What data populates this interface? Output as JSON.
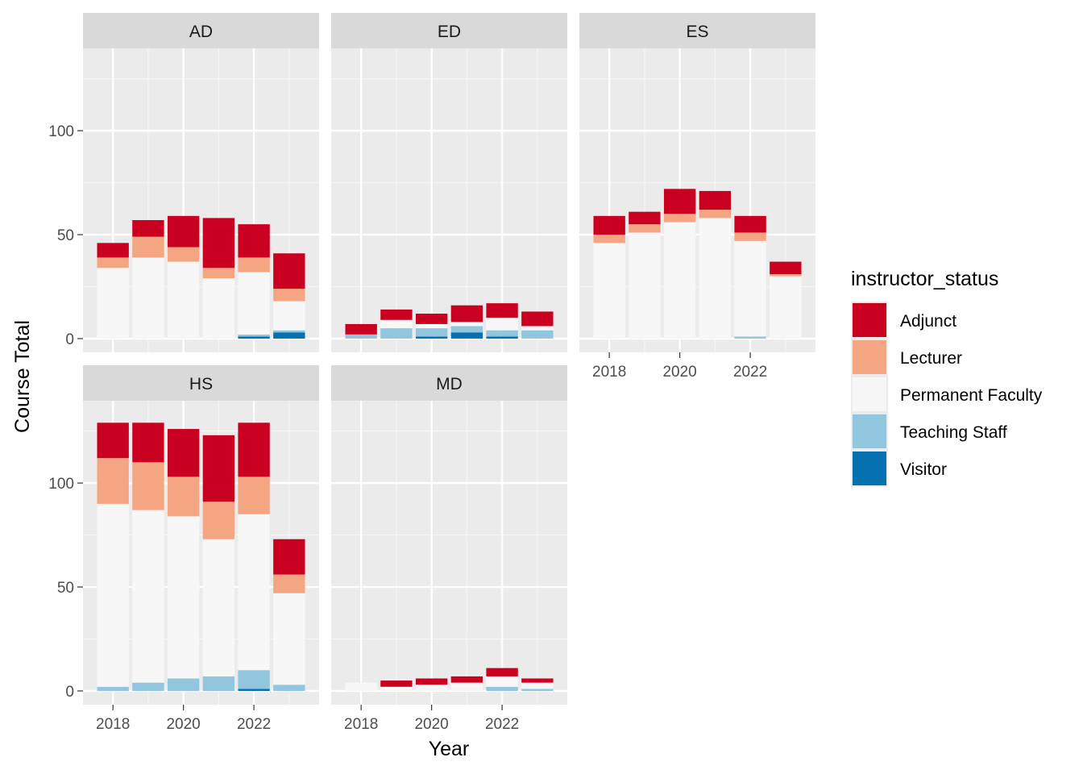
{
  "chart_data": {
    "type": "bar",
    "stacked": true,
    "facet_variable": "facets",
    "x_label": "Year",
    "y_label": "Course Total",
    "x_ticks": [
      2018,
      2020,
      2022
    ],
    "y_ticks": [
      0,
      50,
      100
    ],
    "ylim": [
      0,
      133
    ],
    "years": [
      2018,
      2019,
      2020,
      2021,
      2022,
      2023
    ],
    "legend": {
      "title": "instructor_status",
      "position": "right",
      "items": [
        {
          "name": "Adjunct",
          "color": "#ca0020"
        },
        {
          "name": "Lecturer",
          "color": "#f4a582"
        },
        {
          "name": "Permanent Faculty",
          "color": "#f7f7f7"
        },
        {
          "name": "Teaching Staff",
          "color": "#92c5de"
        },
        {
          "name": "Visitor",
          "color": "#0571b0"
        }
      ]
    },
    "grid": true,
    "facets": [
      {
        "name": "AD",
        "series": {
          "Visitor": [
            0,
            0,
            0,
            0,
            1,
            3
          ],
          "Teaching Staff": [
            0,
            0,
            0,
            0,
            1,
            1
          ],
          "Permanent Faculty": [
            34,
            39,
            37,
            29,
            30,
            14
          ],
          "Lecturer": [
            5,
            10,
            7,
            5,
            7,
            6
          ],
          "Adjunct": [
            7,
            8,
            15,
            24,
            16,
            17
          ]
        }
      },
      {
        "name": "ED",
        "series": {
          "Visitor": [
            0,
            0,
            1,
            3,
            1,
            0
          ],
          "Teaching Staff": [
            2,
            5,
            4,
            3,
            3,
            4
          ],
          "Permanent Faculty": [
            0,
            4,
            2,
            2,
            6,
            2
          ],
          "Lecturer": [
            0,
            0,
            0,
            0,
            0,
            0
          ],
          "Adjunct": [
            5,
            5,
            5,
            8,
            7,
            7
          ]
        }
      },
      {
        "name": "ES",
        "series": {
          "Visitor": [
            0,
            0,
            0,
            0,
            0,
            0
          ],
          "Teaching Staff": [
            0,
            0,
            0,
            0,
            1,
            0
          ],
          "Permanent Faculty": [
            46,
            51,
            56,
            58,
            46,
            30
          ],
          "Lecturer": [
            4,
            4,
            4,
            4,
            4,
            1
          ],
          "Adjunct": [
            9,
            6,
            12,
            9,
            8,
            6
          ]
        }
      },
      {
        "name": "HS",
        "series": {
          "Visitor": [
            0,
            0,
            0,
            0,
            1,
            0
          ],
          "Teaching Staff": [
            2,
            4,
            6,
            7,
            9,
            3
          ],
          "Permanent Faculty": [
            88,
            83,
            78,
            66,
            75,
            44
          ],
          "Lecturer": [
            22,
            23,
            19,
            18,
            18,
            9
          ],
          "Adjunct": [
            17,
            19,
            23,
            32,
            26,
            17
          ]
        }
      },
      {
        "name": "MD",
        "series": {
          "Visitor": [
            0,
            0,
            0,
            0,
            0,
            0
          ],
          "Teaching Staff": [
            0,
            0,
            0,
            0,
            2,
            1
          ],
          "Permanent Faculty": [
            4,
            2,
            3,
            4,
            5,
            3
          ],
          "Lecturer": [
            0,
            0,
            0,
            0,
            0,
            0
          ],
          "Adjunct": [
            0,
            3,
            3,
            3,
            4,
            2
          ]
        }
      }
    ]
  }
}
